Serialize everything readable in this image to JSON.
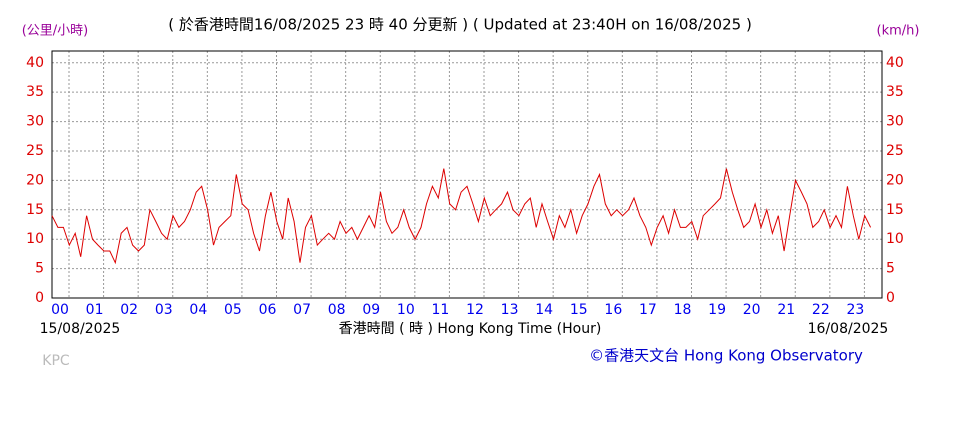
{
  "chart_data": {
    "type": "line",
    "title": "( 於香港時間16/08/2025 23 時 40 分更新 ) ( Updated at 23:40H on 16/08/2025 )",
    "y_unit_left": "(公里/小時)",
    "y_unit_right": "(km/h)",
    "x_label": "香港時間 ( 時 ) Hong Kong Time (Hour)",
    "start_date": "15/08/2025",
    "end_date": "16/08/2025",
    "station": "KPC",
    "credit": "©香港天文台 Hong Kong Observatory",
    "xlim": [
      0,
      24
    ],
    "ylim": [
      0,
      42
    ],
    "yticks": [
      0,
      5,
      10,
      15,
      20,
      25,
      30,
      35,
      40
    ],
    "xticks": [
      {
        "value": 0,
        "label": "00"
      },
      {
        "value": 1,
        "label": "01"
      },
      {
        "value": 2,
        "label": "02"
      },
      {
        "value": 3,
        "label": "03"
      },
      {
        "value": 4,
        "label": "04"
      },
      {
        "value": 5,
        "label": "05"
      },
      {
        "value": 6,
        "label": "06"
      },
      {
        "value": 7,
        "label": "07"
      },
      {
        "value": 8,
        "label": "08"
      },
      {
        "value": 9,
        "label": "09"
      },
      10,
      11,
      12,
      13,
      14,
      15,
      16,
      17,
      18,
      19,
      20,
      21,
      22,
      23
    ],
    "grid": true,
    "color": "#dd0000",
    "x": [
      0,
      0.17,
      0.33,
      0.5,
      0.67,
      0.83,
      1,
      1.17,
      1.33,
      1.5,
      1.67,
      1.83,
      2,
      2.17,
      2.33,
      2.5,
      2.67,
      2.83,
      3,
      3.17,
      3.33,
      3.5,
      3.67,
      3.83,
      4,
      4.17,
      4.33,
      4.5,
      4.67,
      4.83,
      5,
      5.17,
      5.33,
      5.5,
      5.67,
      5.83,
      6,
      6.17,
      6.33,
      6.5,
      6.67,
      6.83,
      7,
      7.17,
      7.33,
      7.5,
      7.67,
      7.83,
      8,
      8.17,
      8.33,
      8.5,
      8.67,
      8.83,
      9,
      9.17,
      9.33,
      9.5,
      9.67,
      9.83,
      10,
      10.17,
      10.33,
      10.5,
      10.67,
      10.83,
      11,
      11.17,
      11.33,
      11.5,
      11.67,
      11.83,
      12,
      12.17,
      12.33,
      12.5,
      12.67,
      12.83,
      13,
      13.17,
      13.33,
      13.5,
      13.67,
      13.83,
      14,
      14.17,
      14.33,
      14.5,
      14.67,
      14.83,
      15,
      15.17,
      15.33,
      15.5,
      15.67,
      15.83,
      16,
      16.17,
      16.33,
      16.5,
      16.67,
      16.83,
      17,
      17.17,
      17.33,
      17.5,
      17.67,
      17.83,
      18,
      18.17,
      18.33,
      18.5,
      18.67,
      18.83,
      19,
      19.17,
      19.33,
      19.5,
      19.67,
      19.83,
      20,
      20.17,
      20.33,
      20.5,
      20.67,
      20.83,
      21,
      21.17,
      21.33,
      21.5,
      21.67,
      21.83,
      22,
      22.17,
      22.33,
      22.5,
      22.67,
      22.83,
      23,
      23.17,
      23.33,
      23.5,
      23.67
    ],
    "values": [
      14,
      12,
      12,
      9,
      11,
      7,
      14,
      10,
      9,
      8,
      8,
      6,
      11,
      12,
      9,
      8,
      9,
      15,
      13,
      11,
      10,
      14,
      12,
      13,
      15,
      18,
      19,
      15,
      9,
      12,
      13,
      14,
      21,
      16,
      15,
      11,
      8,
      14,
      18,
      13,
      10,
      17,
      13,
      6,
      12,
      14,
      9,
      10,
      11,
      10,
      13,
      11,
      12,
      10,
      12,
      14,
      12,
      18,
      13,
      11,
      12,
      15,
      12,
      10,
      12,
      16,
      19,
      17,
      22,
      16,
      15,
      18,
      19,
      16,
      13,
      17,
      14,
      15,
      16,
      18,
      15,
      14,
      16,
      17,
      12,
      16,
      13,
      10,
      14,
      12,
      15,
      11,
      14,
      16,
      19,
      21,
      16,
      14,
      15,
      14,
      15,
      17,
      14,
      12,
      9,
      12,
      14,
      11,
      15,
      12,
      12,
      13,
      10,
      14,
      15,
      16,
      17,
      22,
      18,
      15,
      12,
      13,
      16,
      12,
      15,
      11,
      14,
      8,
      14,
      20,
      18,
      16,
      12,
      13,
      15,
      12,
      14,
      12,
      19,
      14,
      10,
      14,
      12
    ]
  }
}
